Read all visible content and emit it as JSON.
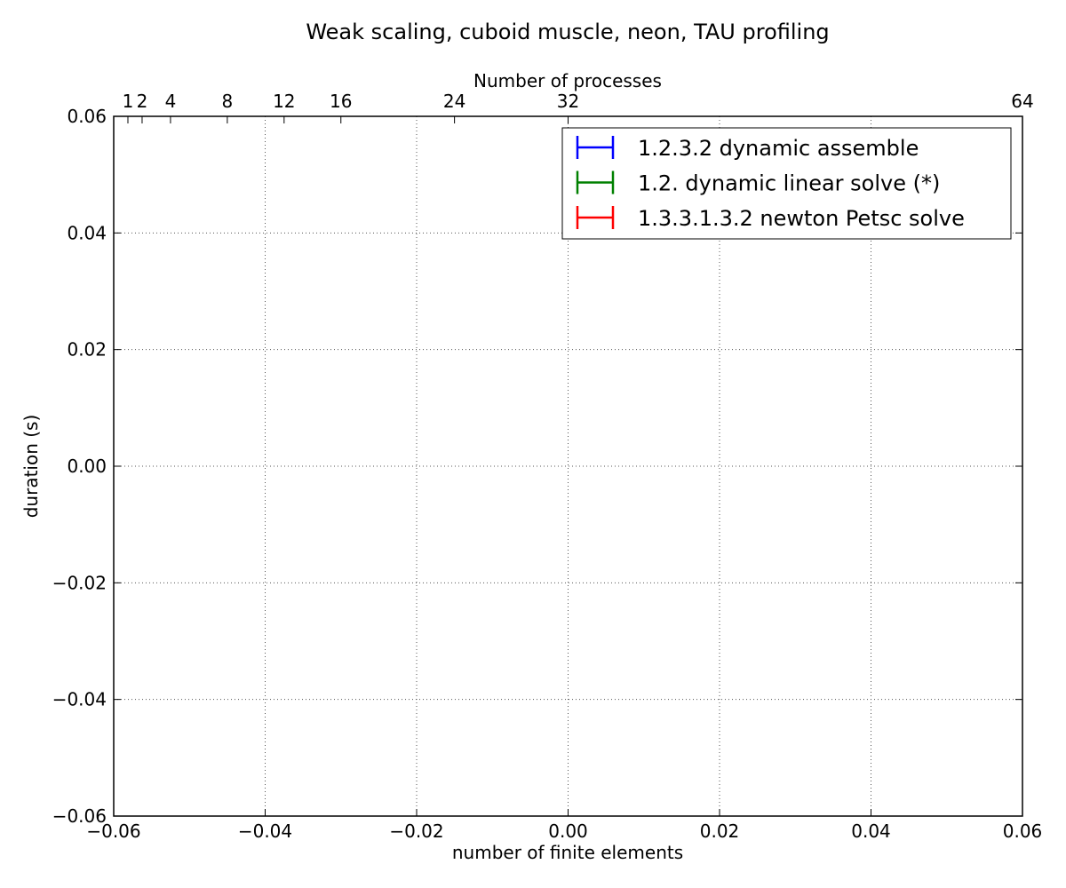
{
  "chart_data": {
    "type": "scatter",
    "title": "Weak scaling, cuboid muscle, neon, TAU profiling",
    "xlabel": "number of finite elements",
    "ylabel": "duration (s)",
    "top_xlabel": "Number of processes",
    "xlim": [
      -0.06,
      0.06
    ],
    "ylim": [
      -0.06,
      0.06
    ],
    "x_ticks": [
      -0.06,
      -0.04,
      -0.02,
      0.0,
      0.02,
      0.04,
      0.06
    ],
    "x_tick_labels": [
      "−0.06",
      "−0.04",
      "−0.02",
      "0.00",
      "0.02",
      "0.04",
      "0.06"
    ],
    "y_ticks": [
      0.06,
      0.04,
      0.02,
      0.0,
      -0.02,
      -0.04,
      -0.06
    ],
    "y_tick_labels": [
      "0.06",
      "0.04",
      "0.02",
      "0.00",
      "−0.02",
      "−0.04",
      "−0.06"
    ],
    "top_ticks": [
      1,
      2,
      4,
      8,
      12,
      16,
      24,
      32,
      64
    ],
    "top_tick_labels": [
      "1",
      "2",
      "4",
      "8",
      "12",
      "16",
      "24",
      "32",
      "64"
    ],
    "top_range": [
      0,
      64
    ],
    "grid": true,
    "legend_position": "top-right",
    "series": [
      {
        "name": "1.2.3.2 dynamic assemble",
        "color": "#0000ff",
        "x": [],
        "y": []
      },
      {
        "name": "1.2. dynamic linear solve (*)",
        "color": "#008000",
        "x": [],
        "y": []
      },
      {
        "name": "1.3.3.1.3.2 newton Petsc solve",
        "color": "#ff0000",
        "x": [],
        "y": []
      }
    ]
  }
}
